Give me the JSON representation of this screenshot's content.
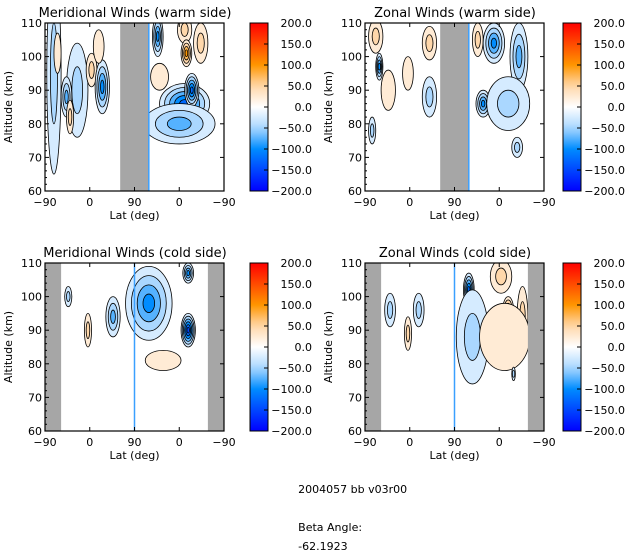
{
  "footer": {
    "run_id": "2004057 bb v03r00",
    "beta_label": "Beta Angle:",
    "beta_value": "-62.1923"
  },
  "chart_data": [
    {
      "type": "heatmap",
      "id": "meridional-warm",
      "title": "Meridional Winds (warm side)",
      "xlabel": "Lat (deg)",
      "ylabel": "Altitude (km)",
      "x_tick_labels": [
        "-90",
        "0",
        "90",
        "0",
        "-90"
      ],
      "y_tick_labels": [
        "60",
        "70",
        "80",
        "90",
        "100",
        "110"
      ],
      "ylim": [
        60,
        110
      ],
      "x_track": "orbit latitude -90 → 90 → -90",
      "no_data_bands": [
        [
          0.42,
          0.58
        ]
      ],
      "colorbar": {
        "min": -200,
        "max": 200,
        "ticks": [
          "200.0",
          "150.0",
          "100.0",
          "50.0",
          "0.0",
          "-50.0",
          "-100.0",
          "-150.0",
          "-200.0"
        ]
      },
      "features": [
        {
          "x": 0.05,
          "y": 95,
          "v": -60,
          "w": 0.04,
          "h": 30
        },
        {
          "x": 0.18,
          "y": 90,
          "v": -50,
          "w": 0.06,
          "h": 14
        },
        {
          "x": 0.12,
          "y": 88,
          "v": -80,
          "w": 0.03,
          "h": 6
        },
        {
          "x": 0.07,
          "y": 101,
          "v": 35,
          "w": 0.02,
          "h": 6
        },
        {
          "x": 0.14,
          "y": 82,
          "v": 40,
          "w": 0.02,
          "h": 5
        },
        {
          "x": 0.26,
          "y": 96,
          "v": 40,
          "w": 0.03,
          "h": 5
        },
        {
          "x": 0.32,
          "y": 91,
          "v": -90,
          "w": 0.04,
          "h": 8
        },
        {
          "x": 0.3,
          "y": 103,
          "v": 30,
          "w": 0.03,
          "h": 5
        },
        {
          "x": 0.63,
          "y": 106,
          "v": -90,
          "w": 0.03,
          "h": 6
        },
        {
          "x": 0.78,
          "y": 108,
          "v": 50,
          "w": 0.04,
          "h": 4
        },
        {
          "x": 0.79,
          "y": 101,
          "v": 90,
          "w": 0.03,
          "h": 4
        },
        {
          "x": 0.87,
          "y": 104,
          "v": 40,
          "w": 0.04,
          "h": 6
        },
        {
          "x": 0.64,
          "y": 94,
          "v": 25,
          "w": 0.05,
          "h": 4
        },
        {
          "x": 0.78,
          "y": 86,
          "v": -130,
          "w": 0.14,
          "h": 6
        },
        {
          "x": 0.82,
          "y": 90,
          "v": -120,
          "w": 0.04,
          "h": 5
        },
        {
          "x": 0.87,
          "y": 81,
          "v": -140,
          "w": 0.03,
          "h": 3
        },
        {
          "x": 0.75,
          "y": 80,
          "v": -70,
          "w": 0.2,
          "h": 6
        }
      ]
    },
    {
      "type": "heatmap",
      "id": "zonal-warm",
      "title": "Zonal Winds (warm side)",
      "xlabel": "Lat (deg)",
      "ylabel": "Altitude (km)",
      "x_tick_labels": [
        "-90",
        "0",
        "90",
        "0",
        "-90"
      ],
      "y_tick_labels": [
        "60",
        "70",
        "80",
        "90",
        "100",
        "110"
      ],
      "ylim": [
        60,
        110
      ],
      "no_data_bands": [
        [
          0.42,
          0.58
        ]
      ],
      "colorbar": {
        "min": -200,
        "max": 200,
        "ticks": [
          "200.0",
          "150.0",
          "100.0",
          "50.0",
          "0.0",
          "-50.0",
          "-100.0",
          "-150.0",
          "-200.0"
        ]
      },
      "features": [
        {
          "x": 0.06,
          "y": 106,
          "v": 45,
          "w": 0.04,
          "h": 5
        },
        {
          "x": 0.08,
          "y": 97,
          "v": -90,
          "w": 0.02,
          "h": 4
        },
        {
          "x": 0.13,
          "y": 90,
          "v": 30,
          "w": 0.04,
          "h": 6
        },
        {
          "x": 0.24,
          "y": 95,
          "v": 35,
          "w": 0.03,
          "h": 5
        },
        {
          "x": 0.36,
          "y": 104,
          "v": 50,
          "w": 0.04,
          "h": 5
        },
        {
          "x": 0.36,
          "y": 88,
          "v": -60,
          "w": 0.04,
          "h": 6
        },
        {
          "x": 0.04,
          "y": 78,
          "v": -40,
          "w": 0.02,
          "h": 4
        },
        {
          "x": 0.63,
          "y": 105,
          "v": 40,
          "w": 0.03,
          "h": 5
        },
        {
          "x": 0.72,
          "y": 104,
          "v": -90,
          "w": 0.06,
          "h": 6
        },
        {
          "x": 0.86,
          "y": 100,
          "v": -80,
          "w": 0.05,
          "h": 10
        },
        {
          "x": 0.66,
          "y": 86,
          "v": -90,
          "w": 0.04,
          "h": 4
        },
        {
          "x": 0.83,
          "y": 84,
          "v": -130,
          "w": 0.04,
          "h": 4
        },
        {
          "x": 0.8,
          "y": 86,
          "v": -60,
          "w": 0.12,
          "h": 8
        },
        {
          "x": 0.85,
          "y": 73,
          "v": -40,
          "w": 0.03,
          "h": 3
        }
      ]
    },
    {
      "type": "heatmap",
      "id": "meridional-cold",
      "title": "Meridional Winds (cold side)",
      "xlabel": "Lat (deg)",
      "ylabel": "Altitude (km)",
      "x_tick_labels": [
        "-90",
        "0",
        "90",
        "0",
        "-90"
      ],
      "y_tick_labels": [
        "60",
        "70",
        "80",
        "90",
        "100",
        "110"
      ],
      "ylim": [
        60,
        110
      ],
      "no_data_bands": [
        [
          0.0,
          0.09
        ],
        [
          0.91,
          1.0
        ]
      ],
      "colorbar": {
        "min": -200,
        "max": 200,
        "ticks": [
          "200.0",
          "150.0",
          "100.0",
          "50.0",
          "0.0",
          "-50.0",
          "-100.0",
          "-150.0",
          "-200.0"
        ]
      },
      "features": [
        {
          "x": 0.13,
          "y": 100,
          "v": -40,
          "w": 0.02,
          "h": 3
        },
        {
          "x": 0.24,
          "y": 90,
          "v": 40,
          "w": 0.02,
          "h": 5
        },
        {
          "x": 0.38,
          "y": 94,
          "v": -70,
          "w": 0.04,
          "h": 6
        },
        {
          "x": 0.58,
          "y": 103,
          "v": -170,
          "w": 0.08,
          "h": 5
        },
        {
          "x": 0.58,
          "y": 98,
          "v": -100,
          "w": 0.13,
          "h": 11
        },
        {
          "x": 0.8,
          "y": 90,
          "v": -150,
          "w": 0.04,
          "h": 5
        },
        {
          "x": 0.8,
          "y": 107,
          "v": -100,
          "w": 0.03,
          "h": 3
        },
        {
          "x": 0.66,
          "y": 81,
          "v": 25,
          "w": 0.1,
          "h": 3
        }
      ]
    },
    {
      "type": "heatmap",
      "id": "zonal-cold",
      "title": "Zonal Winds (cold side)",
      "xlabel": "Lat (deg)",
      "ylabel": "Altitude (km)",
      "x_tick_labels": [
        "-90",
        "0",
        "90",
        "0",
        "-90"
      ],
      "y_tick_labels": [
        "60",
        "70",
        "80",
        "90",
        "100",
        "110"
      ],
      "ylim": [
        60,
        110
      ],
      "no_data_bands": [
        [
          0.0,
          0.09
        ],
        [
          0.91,
          1.0
        ]
      ],
      "colorbar": {
        "min": -200,
        "max": 200,
        "ticks": [
          "200.0",
          "150.0",
          "100.0",
          "50.0",
          "0.0",
          "-50.0",
          "-100.0",
          "-150.0",
          "-200.0"
        ]
      },
      "features": [
        {
          "x": 0.14,
          "y": 96,
          "v": -40,
          "w": 0.03,
          "h": 5
        },
        {
          "x": 0.24,
          "y": 89,
          "v": 60,
          "w": 0.02,
          "h": 5
        },
        {
          "x": 0.3,
          "y": 96,
          "v": -40,
          "w": 0.03,
          "h": 5
        },
        {
          "x": 0.58,
          "y": 102,
          "v": -120,
          "w": 0.03,
          "h": 5
        },
        {
          "x": 0.6,
          "y": 88,
          "v": -40,
          "w": 0.09,
          "h": 14
        },
        {
          "x": 0.76,
          "y": 106,
          "v": 50,
          "w": 0.06,
          "h": 5
        },
        {
          "x": 0.8,
          "y": 96,
          "v": 90,
          "w": 0.03,
          "h": 4
        },
        {
          "x": 0.88,
          "y": 94,
          "v": 60,
          "w": 0.03,
          "h": 9
        },
        {
          "x": 0.78,
          "y": 88,
          "v": 20,
          "w": 0.14,
          "h": 10
        },
        {
          "x": 0.83,
          "y": 77,
          "v": -40,
          "w": 0.01,
          "h": 2
        }
      ]
    }
  ]
}
